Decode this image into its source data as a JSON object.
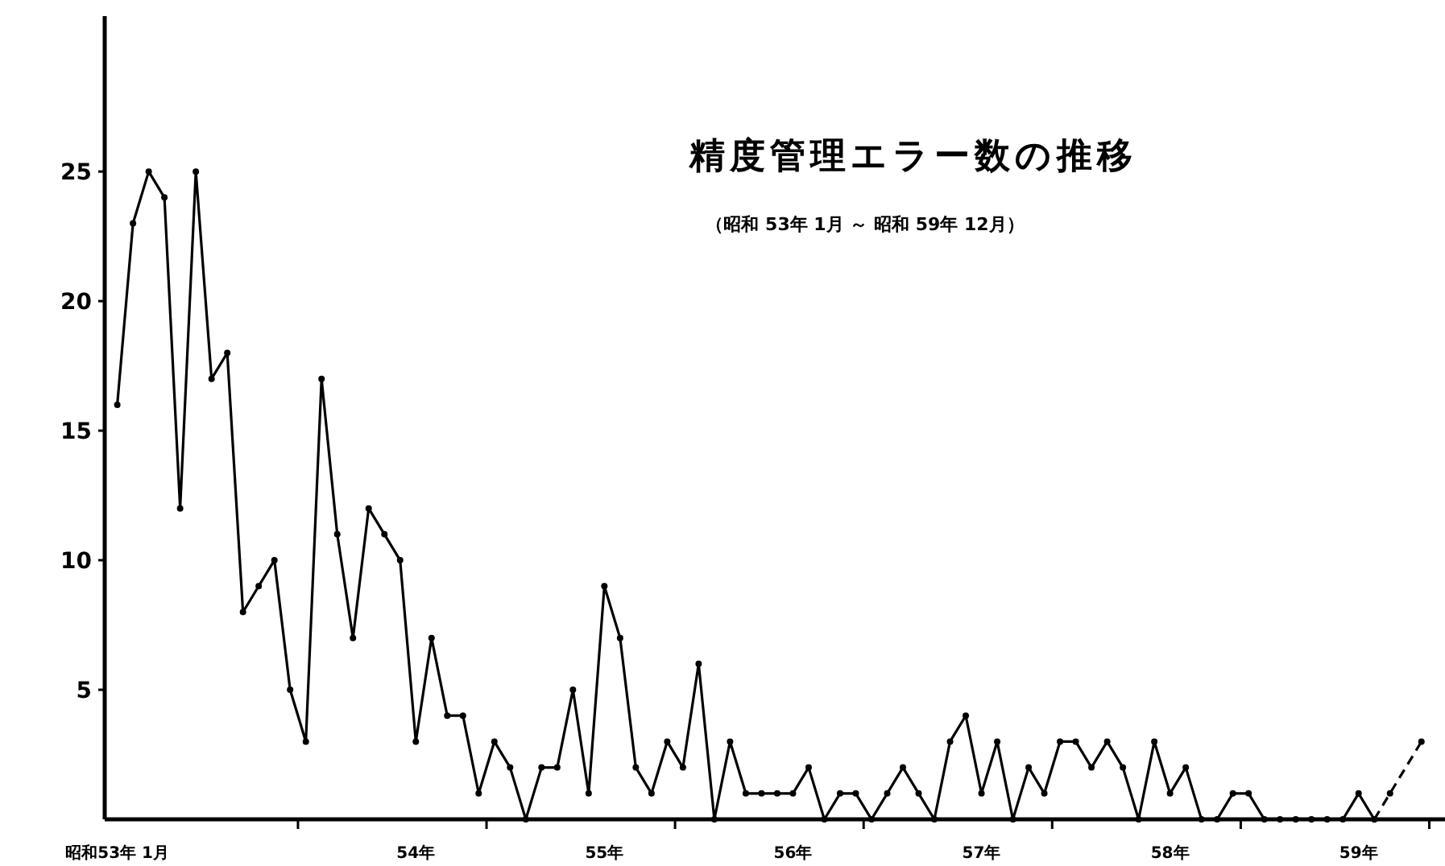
{
  "chart_data": {
    "type": "line",
    "title": "精度管理エラー数の推移",
    "subtitle": "（昭和 53年 1月 ～ 昭和 59年 12月）",
    "categories": [
      "昭和53年 1月",
      null,
      null,
      null,
      null,
      null,
      null,
      null,
      null,
      null,
      null,
      null,
      null,
      null,
      null,
      null,
      null,
      null,
      null,
      "54年",
      null,
      null,
      null,
      null,
      null,
      null,
      null,
      null,
      null,
      null,
      null,
      "55年",
      null,
      null,
      null,
      null,
      null,
      null,
      null,
      null,
      null,
      null,
      null,
      "56年",
      null,
      null,
      null,
      null,
      null,
      null,
      null,
      null,
      null,
      null,
      null,
      "57年",
      null,
      null,
      null,
      null,
      null,
      null,
      null,
      null,
      null,
      null,
      null,
      "58年",
      null,
      null,
      null,
      null,
      null,
      null,
      null,
      null,
      null,
      null,
      null,
      "59年",
      null,
      null,
      null,
      null
    ],
    "ylim": [
      0,
      31
    ],
    "yticks": [
      5,
      10,
      15,
      20,
      25
    ],
    "grid": false,
    "marker": "circle",
    "series": [
      {
        "color": "#000000",
        "line_style": "solid",
        "values": [
          16,
          23,
          25,
          24,
          12,
          25,
          17,
          18,
          8,
          9,
          10,
          5,
          3,
          17,
          11,
          7,
          12,
          11,
          10,
          3,
          7,
          4,
          4,
          1,
          3,
          2,
          0,
          2,
          2,
          5,
          1,
          9,
          7,
          2,
          1,
          3,
          2,
          6,
          0,
          3,
          1,
          1,
          1,
          1,
          2,
          0,
          1,
          1,
          0,
          1,
          2,
          1,
          0,
          3,
          4,
          1,
          3,
          0,
          2,
          1,
          3,
          3,
          2,
          3,
          2,
          0,
          3,
          1,
          2,
          0,
          0,
          1,
          1,
          0,
          0,
          0,
          0,
          0,
          0,
          1,
          0,
          null,
          null,
          null
        ]
      },
      {
        "color": "#000000",
        "line_style": "dashed",
        "values": [
          null,
          null,
          null,
          null,
          null,
          null,
          null,
          null,
          null,
          null,
          null,
          null,
          null,
          null,
          null,
          null,
          null,
          null,
          null,
          null,
          null,
          null,
          null,
          null,
          null,
          null,
          null,
          null,
          null,
          null,
          null,
          null,
          null,
          null,
          null,
          null,
          null,
          null,
          null,
          null,
          null,
          null,
          null,
          null,
          null,
          null,
          null,
          null,
          null,
          null,
          null,
          null,
          null,
          null,
          null,
          null,
          null,
          null,
          null,
          null,
          null,
          null,
          null,
          null,
          null,
          null,
          null,
          null,
          null,
          null,
          null,
          null,
          null,
          null,
          null,
          null,
          null,
          null,
          null,
          null,
          0,
          1,
          null,
          3
        ]
      }
    ]
  }
}
